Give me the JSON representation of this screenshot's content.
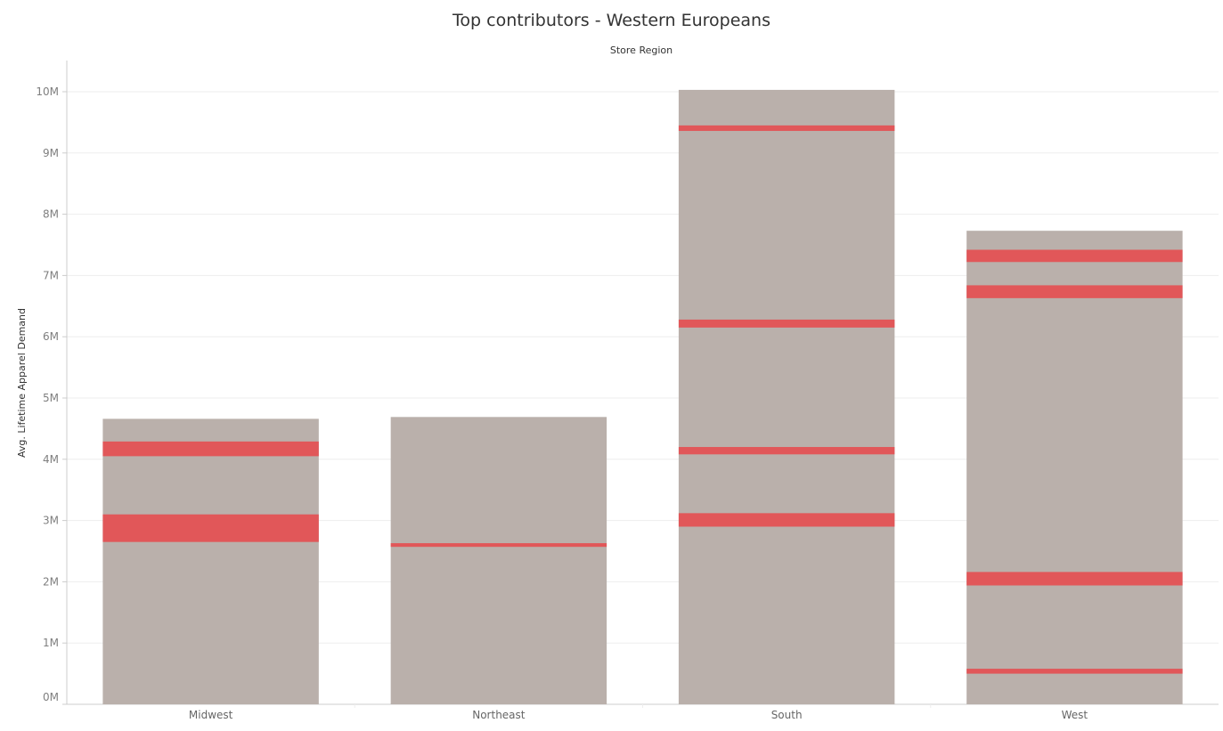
{
  "chart_data": {
    "type": "bar",
    "title": "Top contributors - Western Europeans",
    "subtitle": "Store Region",
    "xlabel": "",
    "ylabel": "Avg. Lifetime Apparel Demand",
    "ylim": [
      0,
      10000000
    ],
    "yticks": [
      {
        "value": 0,
        "label": "0M"
      },
      {
        "value": 1000000,
        "label": "1M"
      },
      {
        "value": 2000000,
        "label": "2M"
      },
      {
        "value": 3000000,
        "label": "3M"
      },
      {
        "value": 4000000,
        "label": "4M"
      },
      {
        "value": 5000000,
        "label": "5M"
      },
      {
        "value": 6000000,
        "label": "6M"
      },
      {
        "value": 7000000,
        "label": "7M"
      },
      {
        "value": 8000000,
        "label": "8M"
      },
      {
        "value": 9000000,
        "label": "9M"
      },
      {
        "value": 10000000,
        "label": "10M"
      }
    ],
    "grid": true,
    "legend": "none",
    "colors": {
      "base": "#bab0ab",
      "highlight": "#e15759",
      "gridline": "#eeeeee",
      "axis": "#cccccc"
    },
    "categories": [
      "Midwest",
      "Northeast",
      "South",
      "West"
    ],
    "totals": [
      4660000,
      4690000,
      10030000,
      7730000
    ],
    "highlight_segments": [
      [
        {
          "start": 4050000,
          "end": 4290000
        },
        {
          "start": 2650000,
          "end": 3100000
        }
      ],
      [
        {
          "start": 2570000,
          "end": 2630000
        }
      ],
      [
        {
          "start": 9360000,
          "end": 9450000
        },
        {
          "start": 6150000,
          "end": 6280000
        },
        {
          "start": 4080000,
          "end": 4200000
        },
        {
          "start": 2900000,
          "end": 3120000
        }
      ],
      [
        {
          "start": 7220000,
          "end": 7420000
        },
        {
          "start": 6630000,
          "end": 6840000
        },
        {
          "start": 1940000,
          "end": 2160000
        },
        {
          "start": 500000,
          "end": 580000
        }
      ]
    ]
  }
}
